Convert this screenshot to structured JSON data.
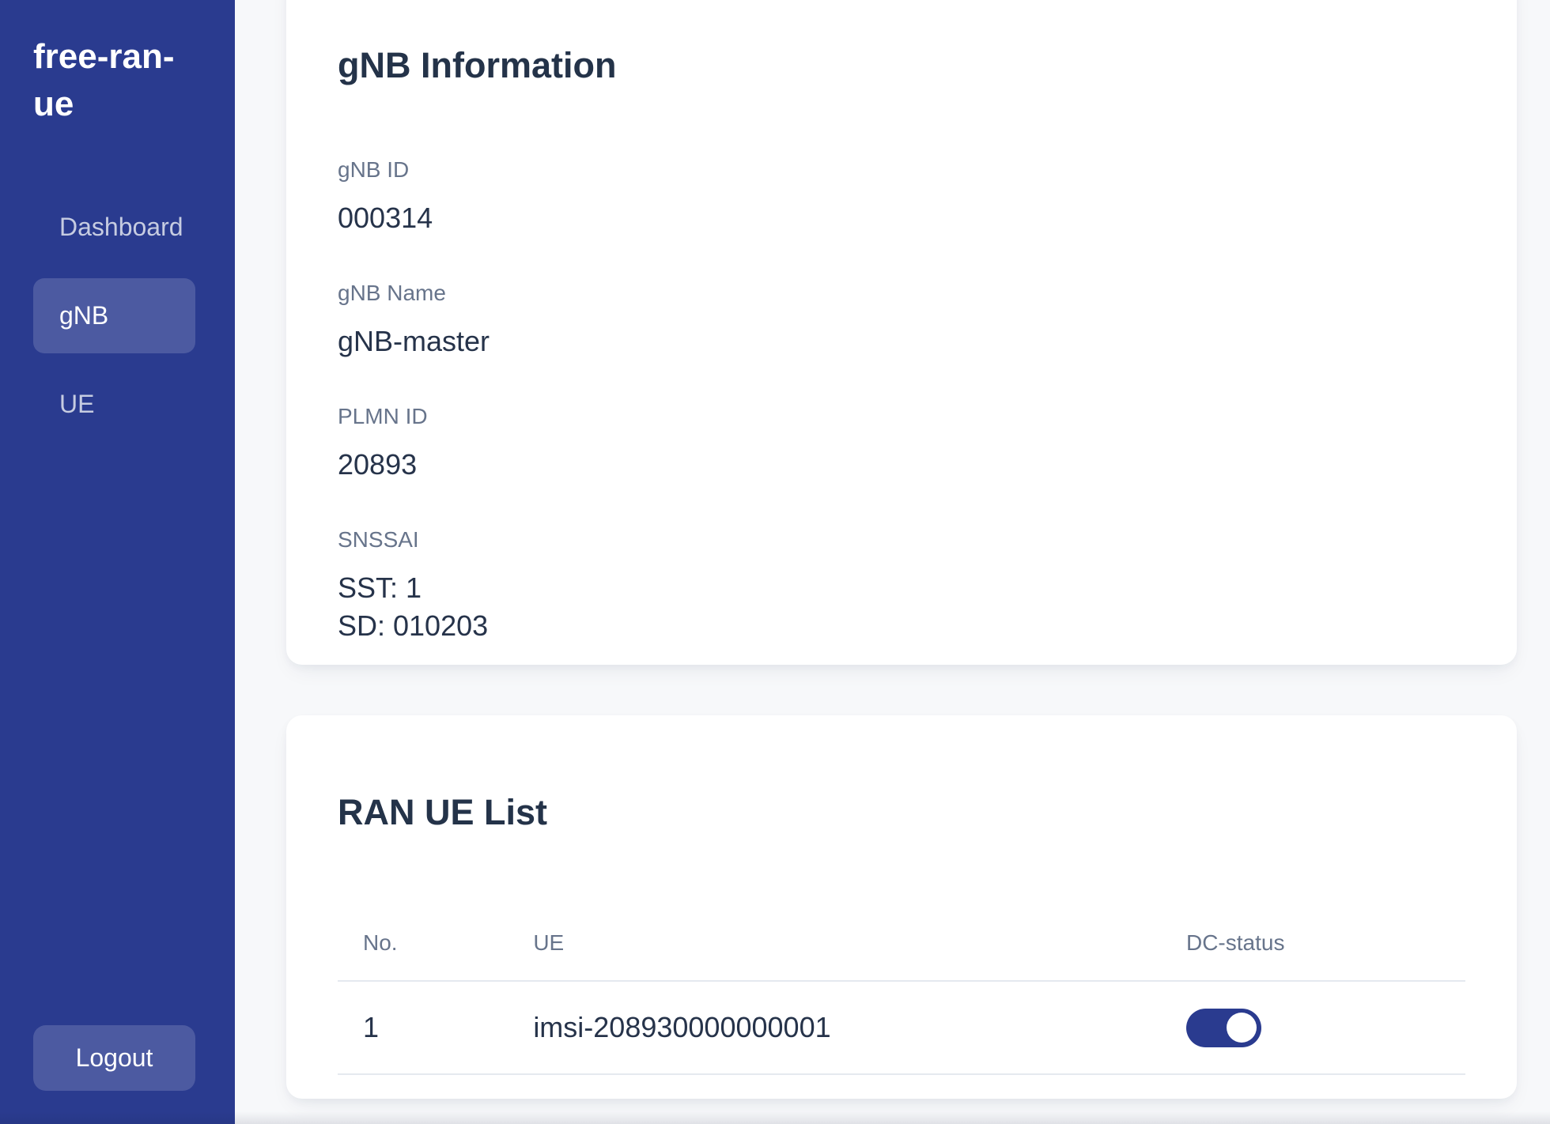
{
  "app": {
    "title": "free-ran-ue"
  },
  "sidebar": {
    "items": [
      {
        "label": "Dashboard",
        "active": false
      },
      {
        "label": "gNB",
        "active": true
      },
      {
        "label": "UE",
        "active": false
      }
    ],
    "logout_label": "Logout"
  },
  "gnb_info": {
    "title": "gNB Information",
    "fields": [
      {
        "label": "gNB ID",
        "values": [
          "000314"
        ]
      },
      {
        "label": "gNB Name",
        "values": [
          "gNB-master"
        ]
      },
      {
        "label": "PLMN ID",
        "values": [
          "20893"
        ]
      },
      {
        "label": "SNSSAI",
        "values": [
          "SST: 1",
          "SD: 010203"
        ]
      }
    ]
  },
  "ran_ue_list": {
    "title": "RAN UE List",
    "columns": [
      "No.",
      "UE",
      "DC-status"
    ],
    "rows": [
      {
        "no": "1",
        "ue": "imsi-208930000000001",
        "dc_status_on": true
      }
    ]
  },
  "colors": {
    "sidebar_bg": "#2a3b8f",
    "toggle_on": "#2a3b8f",
    "nav_inactive": "#c6cce1",
    "heading": "#243349",
    "value": "#26334a",
    "label": "#67748b",
    "line": "#e5e9ef",
    "page_bg": "#f7f8fa"
  }
}
